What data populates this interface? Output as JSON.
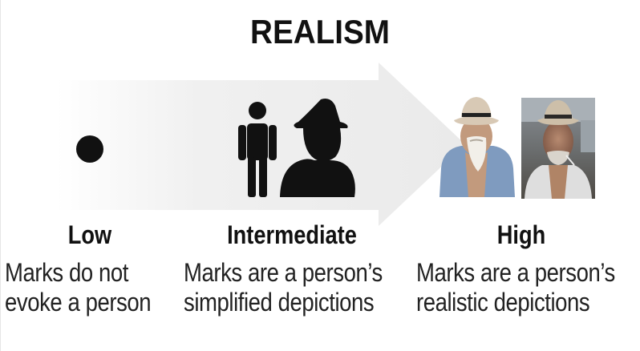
{
  "title": "REALISM",
  "levels": [
    {
      "label": "Low",
      "desc_line1": "Marks do not",
      "desc_line2": "evoke a person"
    },
    {
      "label": "Intermediate",
      "desc_line1": "Marks are a person’s",
      "desc_line2": "simplified depictions"
    },
    {
      "label": "High",
      "desc_line1": "Marks are a person’s",
      "desc_line2": "realistic depictions"
    }
  ],
  "colors": {
    "arrow": "#efefef",
    "mark": "#111111",
    "shirt": "#7f9bbf",
    "skin": "#c29a7d",
    "hat": "#d8c9b5",
    "hat_band": "#222222"
  },
  "icons": [
    "dot-icon",
    "stick-person-icon",
    "silhouette-person-icon",
    "cartoon-man-icon",
    "photo-man-icon"
  ]
}
